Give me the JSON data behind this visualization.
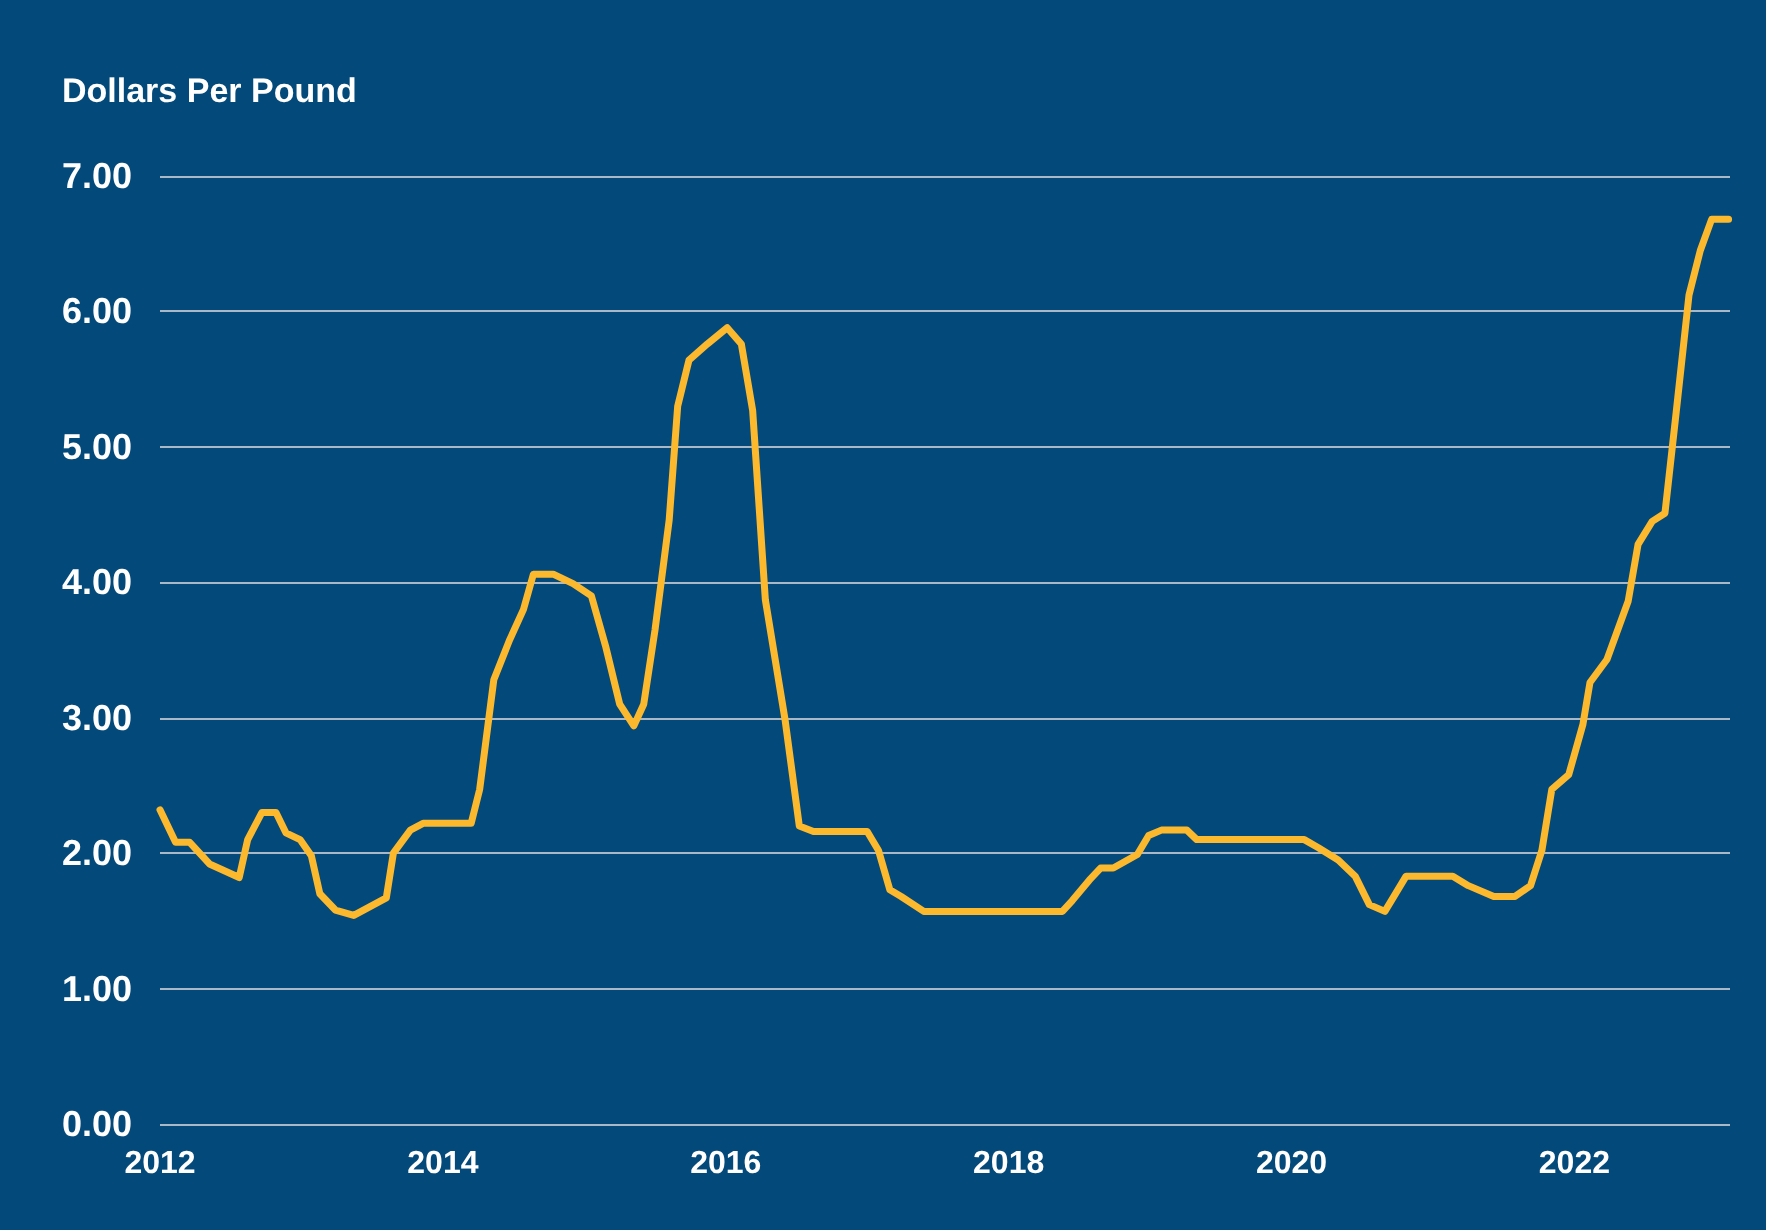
{
  "chart_data": {
    "type": "line",
    "ylabel": "Dollars Per Pound",
    "x": [
      2012.0,
      2012.11,
      2012.21,
      2012.35,
      2012.56,
      2012.62,
      2012.72,
      2012.82,
      2012.89,
      2012.99,
      2013.07,
      2013.13,
      2013.24,
      2013.37,
      2013.6,
      2013.65,
      2013.77,
      2013.86,
      2014.2,
      2014.26,
      2014.36,
      2014.47,
      2014.57,
      2014.64,
      2014.78,
      2014.92,
      2015.05,
      2015.15,
      2015.25,
      2015.35,
      2015.42,
      2015.5,
      2015.6,
      2015.66,
      2015.74,
      2015.87,
      2016.01,
      2016.11,
      2016.19,
      2016.28,
      2016.42,
      2016.52,
      2016.62,
      2017.0,
      2017.08,
      2017.16,
      2017.24,
      2017.4,
      2018.38,
      2018.45,
      2018.57,
      2018.65,
      2018.74,
      2018.91,
      2018.99,
      2019.08,
      2019.26,
      2019.33,
      2020.09,
      2020.19,
      2020.33,
      2020.45,
      2020.55,
      2020.66,
      2020.81,
      2021.14,
      2021.25,
      2021.43,
      2021.58,
      2021.69,
      2021.77,
      2021.84,
      2021.96,
      2022.06,
      2022.11,
      2022.23,
      2022.38,
      2022.45,
      2022.55,
      2022.64,
      2022.72,
      2022.81,
      2022.89,
      2022.97,
      2023.09
    ],
    "series": [
      {
        "color": "#fdb92d",
        "values": [
          2.32,
          2.08,
          2.08,
          1.92,
          1.82,
          2.1,
          2.3,
          2.3,
          2.15,
          2.1,
          1.98,
          1.7,
          1.58,
          1.54,
          1.67,
          2.0,
          2.17,
          2.22,
          2.22,
          2.47,
          3.28,
          3.57,
          3.8,
          4.06,
          4.06,
          3.99,
          3.9,
          3.53,
          3.1,
          2.94,
          3.1,
          3.65,
          4.46,
          5.3,
          5.64,
          5.76,
          5.88,
          5.76,
          5.27,
          3.87,
          2.98,
          2.2,
          2.16,
          2.16,
          2.02,
          1.73,
          1.68,
          1.57,
          1.57,
          1.65,
          1.8,
          1.89,
          1.89,
          1.99,
          2.13,
          2.17,
          2.17,
          2.1,
          2.1,
          2.04,
          1.95,
          1.83,
          1.62,
          1.57,
          1.83,
          1.83,
          1.76,
          1.68,
          1.68,
          1.76,
          2.02,
          2.47,
          2.58,
          2.95,
          3.26,
          3.43,
          3.86,
          4.28,
          4.45,
          4.51,
          5.26,
          6.12,
          6.45,
          6.68,
          6.68
        ]
      }
    ],
    "xlim": [
      2012,
      2023.1
    ],
    "xticks": [
      2012,
      2014,
      2016,
      2018,
      2020,
      2022
    ],
    "ylim": [
      0,
      7
    ],
    "yticks": [
      {
        "value": 0,
        "label": "0.00"
      },
      {
        "value": 1,
        "label": "1.00"
      },
      {
        "value": 2,
        "label": "2.00"
      },
      {
        "value": 3,
        "label": "3.00"
      },
      {
        "value": 4,
        "label": "4.00"
      },
      {
        "value": 5,
        "label": "5.00"
      },
      {
        "value": 6,
        "label": "6.00"
      },
      {
        "value": 7,
        "label": "7.00"
      }
    ],
    "grid": "y",
    "marker": "none",
    "line_style": "solid"
  }
}
